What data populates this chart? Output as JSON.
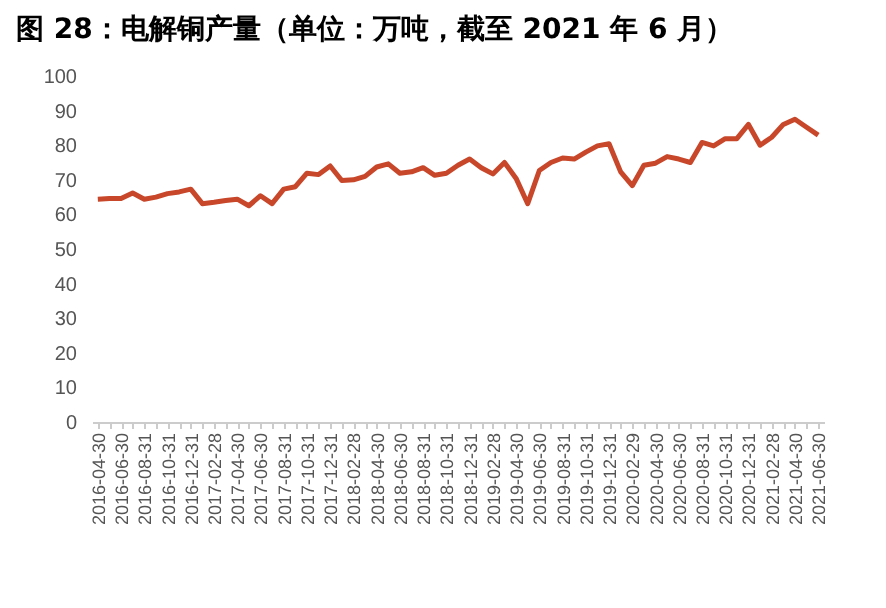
{
  "chart_data": {
    "type": "line",
    "title": "图 28：电解铜产量（单位：万吨，截至 2021 年 6 月）",
    "categories": [
      "2016-04-30",
      null,
      "2016-06-30",
      null,
      "2016-08-31",
      null,
      "2016-10-31",
      null,
      "2016-12-31",
      null,
      "2017-02-28",
      null,
      "2017-04-30",
      null,
      "2017-06-30",
      null,
      "2017-08-31",
      null,
      "2017-10-31",
      null,
      "2017-12-31",
      null,
      "2018-02-28",
      null,
      "2018-04-30",
      null,
      "2018-06-30",
      null,
      "2018-08-31",
      null,
      "2018-10-31",
      null,
      "2018-12-31",
      null,
      "2019-02-28",
      null,
      "2019-04-30",
      null,
      "2019-06-30",
      null,
      "2019-08-31",
      null,
      "2019-10-31",
      null,
      "2019-12-31",
      null,
      "2020-02-29",
      null,
      "2020-04-30",
      null,
      "2020-06-30",
      null,
      "2020-08-31",
      null,
      "2020-10-31",
      null,
      "2020-12-31",
      null,
      "2021-02-28",
      null,
      "2021-04-30",
      null,
      "2021-06-30"
    ],
    "series": [
      {
        "color": "#c8472a",
        "values": [
          64.4,
          64.6,
          64.6,
          66.2,
          64.4,
          65,
          66,
          66.5,
          67.3,
          63.1,
          63.5,
          64,
          64.4,
          62.5,
          65.4,
          63.1,
          67.3,
          68,
          71.9,
          71.5,
          74,
          69.8,
          70,
          71,
          73.7,
          74.6,
          71.9,
          72.3,
          73.5,
          71.3,
          71.9,
          74.2,
          76,
          73.5,
          71.7,
          75,
          70.4,
          63.1,
          72.7,
          75,
          76.3,
          76,
          78,
          79.8,
          80.4,
          72.3,
          68.3,
          74.2,
          74.8,
          76.7,
          76,
          75,
          80.8,
          79.8,
          81.9,
          81.9,
          86,
          80,
          82.3,
          86,
          87.5,
          85.2,
          82.9
        ]
      }
    ],
    "ylim": [
      0,
      100
    ],
    "yticks": [
      0,
      10,
      20,
      30,
      40,
      50,
      60,
      70,
      80,
      90,
      100
    ],
    "grid": false,
    "marker": "none",
    "line_style": "solid"
  }
}
